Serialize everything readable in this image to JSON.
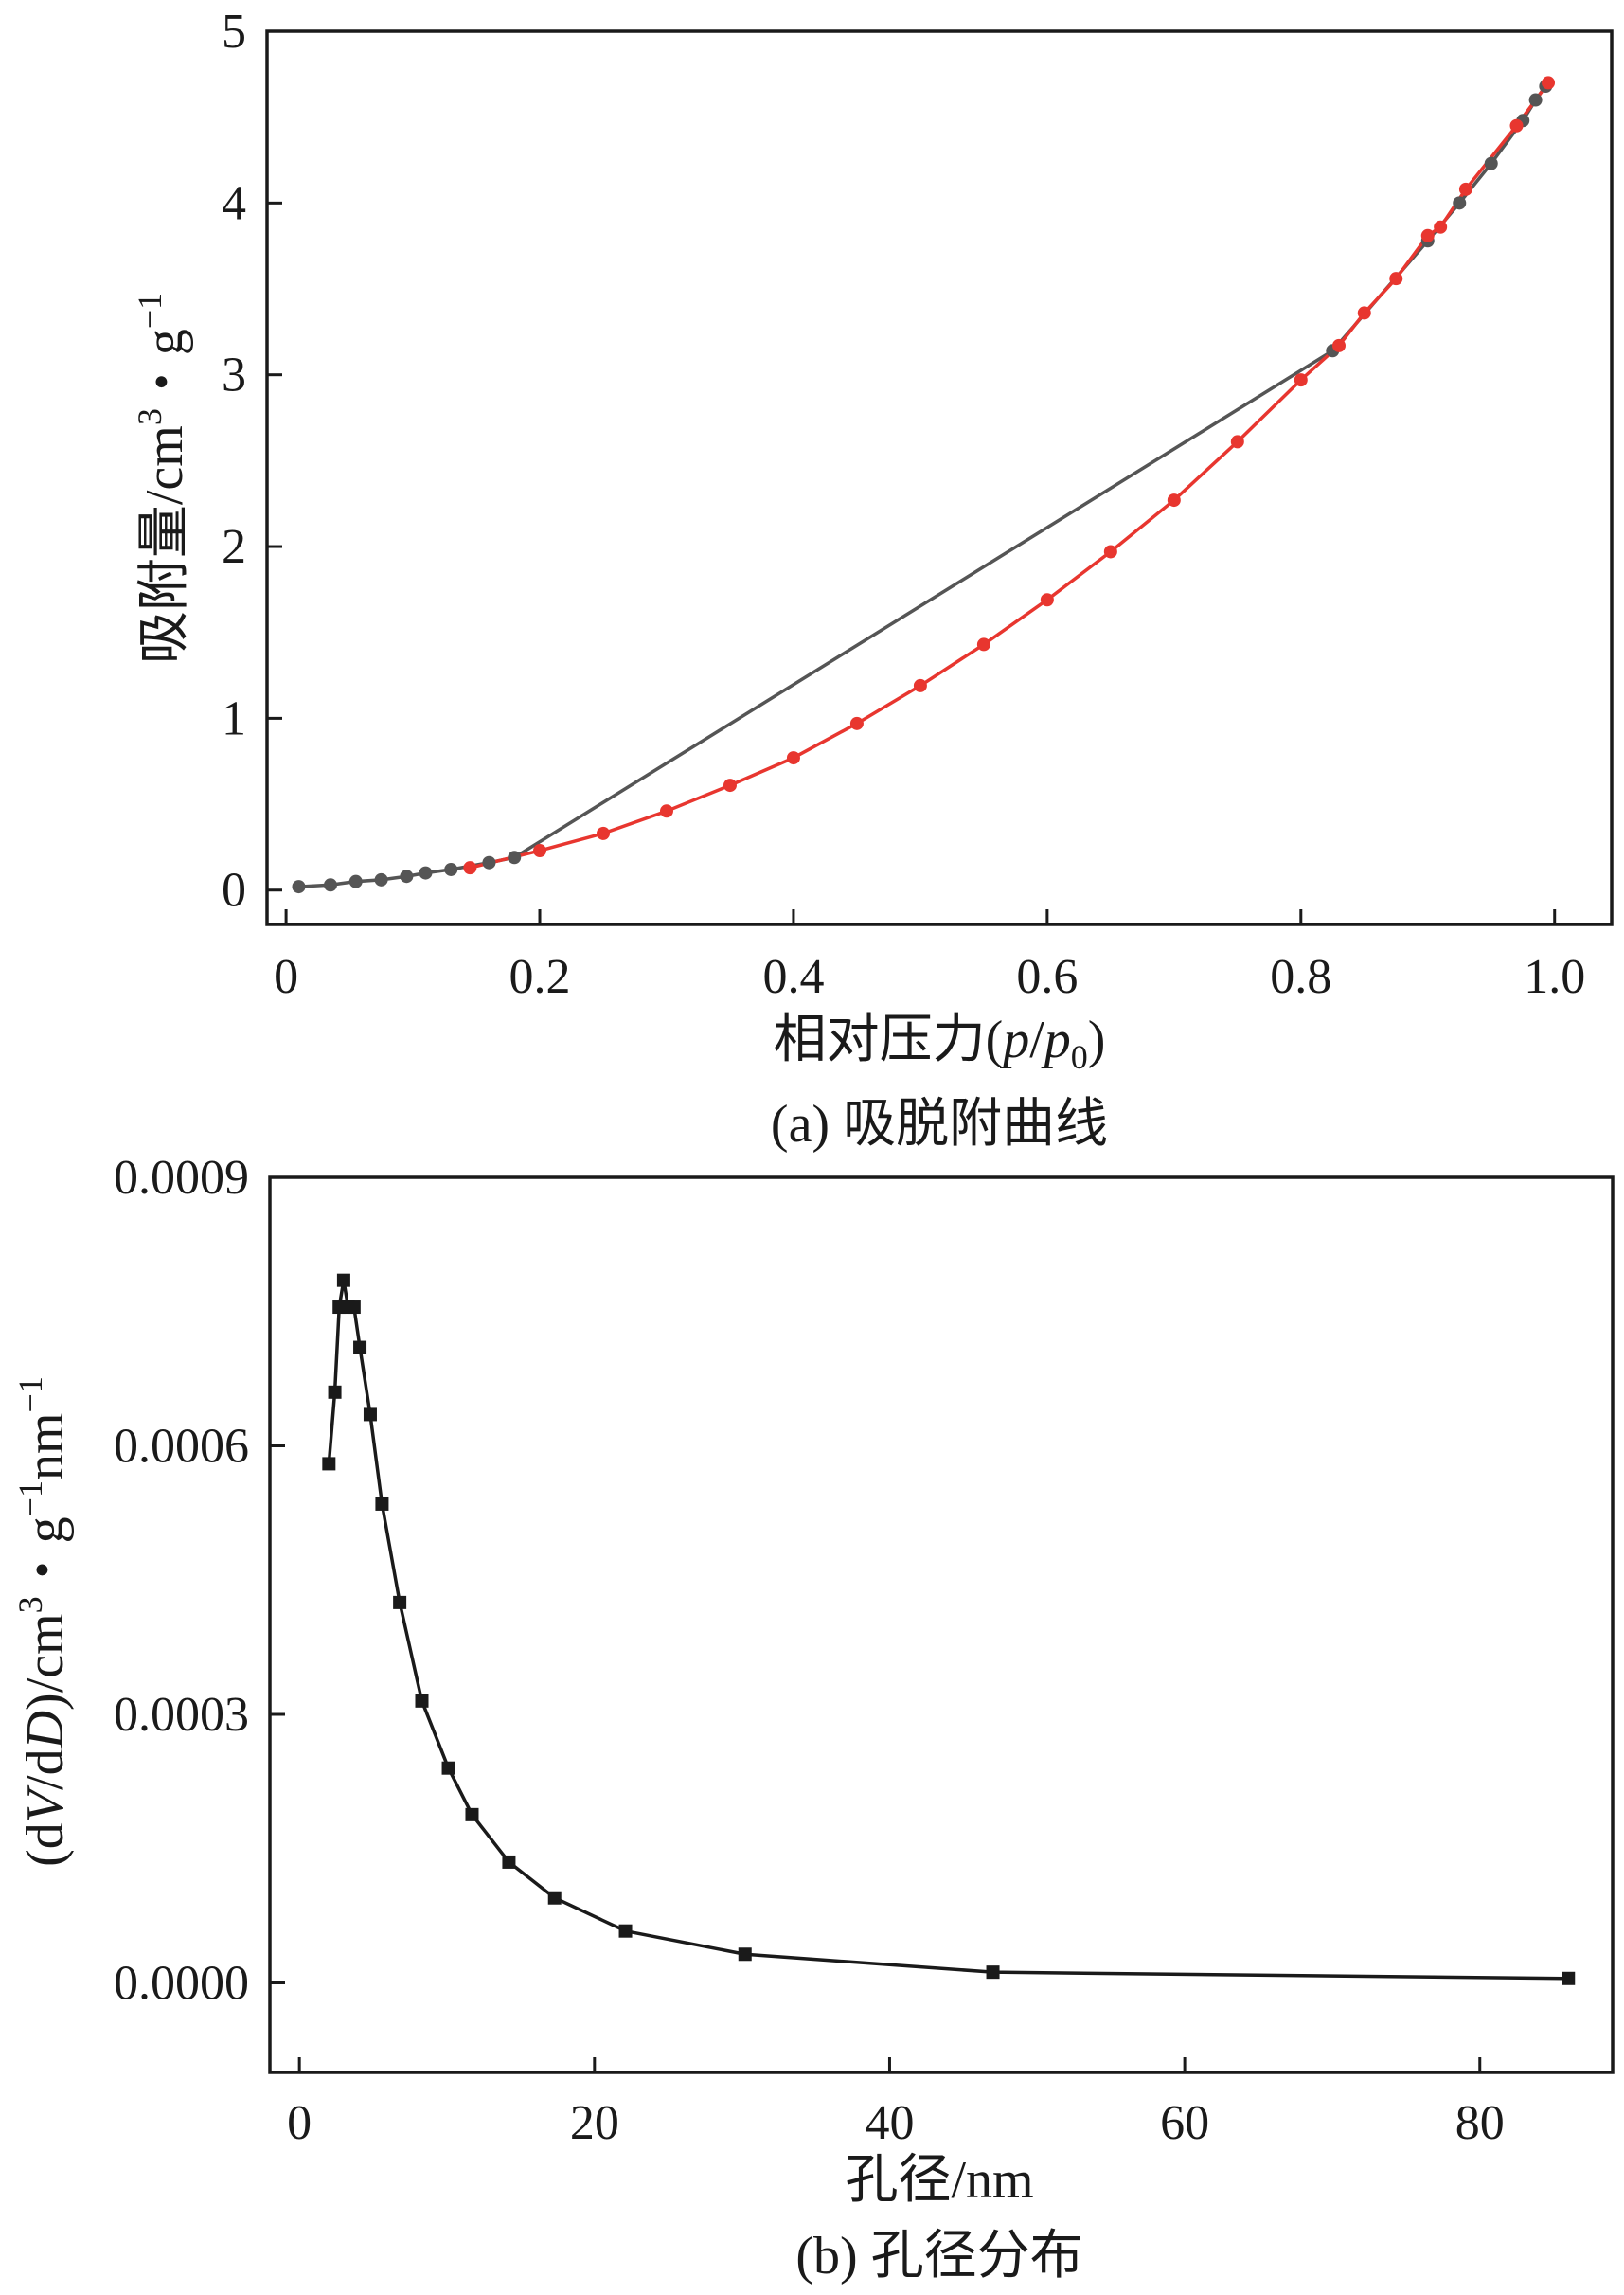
{
  "chart_data": [
    {
      "type": "scatter",
      "caption": "(a) 吸脱附曲线",
      "xlabel": "相对压力(p/p0)",
      "xlabel_parts": {
        "prefix": "相对压力(",
        "p": "p",
        "slash": "/",
        "p0": "p",
        "sub": "0",
        "close": ")"
      },
      "ylabel": "吸附量/cm3・g-1",
      "ylabel_parts": {
        "main": "吸附量/cm",
        "sup1": "3",
        "dot": "・g",
        "sup2": "−1"
      },
      "xlim": [
        -0.015,
        1.045
      ],
      "ylim": [
        -0.2,
        5.0
      ],
      "xticks": [
        0,
        0.2,
        0.4,
        0.6,
        0.8,
        1.0
      ],
      "xtick_labels": [
        "0",
        "0.2",
        "0.4",
        "0.6",
        "0.8",
        "1.0"
      ],
      "yticks": [
        0,
        1,
        2,
        3,
        4,
        5
      ],
      "ytick_labels": [
        "0",
        "1",
        "2",
        "3",
        "4",
        "5"
      ],
      "grid": false,
      "series": [
        {
          "color": "#555555",
          "x": [
            0.01,
            0.035,
            0.055,
            0.075,
            0.095,
            0.11,
            0.13,
            0.16,
            0.18,
            0.825,
            0.9,
            0.925,
            0.95,
            0.975,
            0.985,
            0.993
          ],
          "y": [
            0.02,
            0.03,
            0.05,
            0.06,
            0.08,
            0.1,
            0.12,
            0.16,
            0.19,
            3.14,
            3.78,
            4.0,
            4.23,
            4.48,
            4.6,
            4.68
          ]
        },
        {
          "color": "#e8362f",
          "x": [
            0.145,
            0.2,
            0.25,
            0.3,
            0.35,
            0.4,
            0.45,
            0.5,
            0.55,
            0.6,
            0.65,
            0.7,
            0.75,
            0.8,
            0.83,
            0.85,
            0.875,
            0.9,
            0.91,
            0.93,
            0.97,
            0.995
          ],
          "y": [
            0.13,
            0.23,
            0.33,
            0.46,
            0.61,
            0.77,
            0.97,
            1.19,
            1.43,
            1.69,
            1.97,
            2.27,
            2.61,
            2.97,
            3.17,
            3.36,
            3.56,
            3.81,
            3.86,
            4.08,
            4.45,
            4.7
          ]
        }
      ]
    },
    {
      "type": "line",
      "caption": "(b) 孔径分布",
      "xlabel": "孔径/nm",
      "ylabel": "(dV/dD)/cm3・g-1nm-1",
      "ylabel_parts": {
        "open": "(d",
        "V": "V",
        "mid": "/d",
        "D": "D",
        "close": ")/cm",
        "sup1": "3",
        "dot": "・g",
        "sup2": "−1",
        "nm": "nm",
        "sup3": "−1"
      },
      "xlim": [
        -2,
        89
      ],
      "ylim": [
        -0.0001,
        0.0009
      ],
      "xticks": [
        0,
        20,
        40,
        60,
        80
      ],
      "xtick_labels": [
        "0",
        "20",
        "40",
        "60",
        "80"
      ],
      "yticks": [
        0,
        0.0003,
        0.0006,
        0.0009
      ],
      "ytick_labels": [
        "0.0000",
        "0.0003",
        "0.0006",
        "0.0009"
      ],
      "grid": false,
      "series": [
        {
          "color": "#1a1a1a",
          "x": [
            2.0,
            2.4,
            2.7,
            3.0,
            3.3,
            3.7,
            4.1,
            4.8,
            5.6,
            6.8,
            8.3,
            10.1,
            11.7,
            14.2,
            17.3,
            22.1,
            30.2,
            47.0,
            86.0
          ],
          "y": [
            0.00058,
            0.00066,
            0.000755,
            0.000785,
            0.000755,
            0.000755,
            0.00071,
            0.000635,
            0.000535,
            0.000425,
            0.000315,
            0.00024,
            0.000188,
            0.000135,
            9.5e-05,
            5.8e-05,
            3.2e-05,
            1.2e-05,
            5e-06
          ]
        }
      ]
    }
  ]
}
